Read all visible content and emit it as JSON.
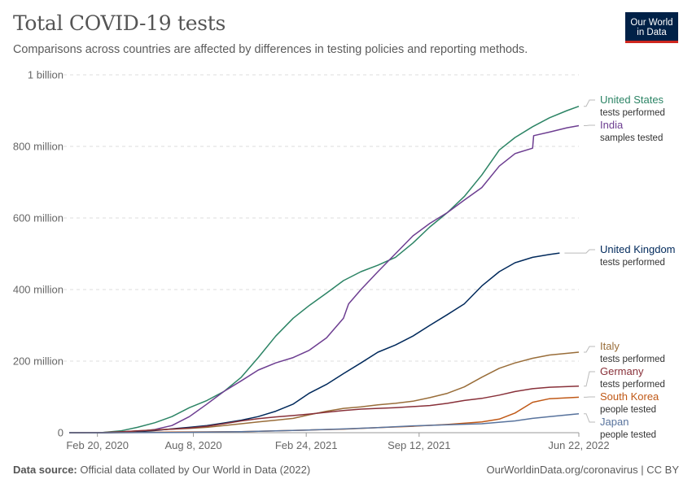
{
  "header": {
    "title": "Total COVID-19 tests",
    "subtitle": "Comparisons across countries are affected by differences in testing policies and reporting methods.",
    "logo_line1": "Our World",
    "logo_line2": "in Data"
  },
  "footer": {
    "source_label": "Data source:",
    "source_text": "Official data collated by Our World in Data (2022)",
    "credit": "OurWorldinData.org/coronavirus | CC BY"
  },
  "colors": {
    "united_states": "#2c8465",
    "india": "#6d3e91",
    "united_kingdom": "#00295b",
    "italy": "#996d39",
    "germany": "#883039",
    "south_korea": "#c05917",
    "japan": "#58739d"
  },
  "chart_data": {
    "type": "line",
    "title": "Total COVID-19 tests",
    "xlabel": "",
    "ylabel": "",
    "x_unit": "date",
    "xlim": [
      "2020-01-01",
      "2022-06-22"
    ],
    "ylim": [
      0,
      1000000000
    ],
    "grid": true,
    "legend": "right (end labels)",
    "x_ticks": [
      {
        "date": "2020-02-20",
        "label": "Feb 20, 2020"
      },
      {
        "date": "2020-08-08",
        "label": "Aug 8, 2020"
      },
      {
        "date": "2021-02-24",
        "label": "Feb 24, 2021"
      },
      {
        "date": "2021-09-12",
        "label": "Sep 12, 2021"
      },
      {
        "date": "2022-06-22",
        "label": "Jun 22, 2022"
      }
    ],
    "y_ticks": [
      {
        "value": 0,
        "label": "0"
      },
      {
        "value": 200000000,
        "label": "200 million"
      },
      {
        "value": 400000000,
        "label": "400 million"
      },
      {
        "value": 600000000,
        "label": "600 million"
      },
      {
        "value": 800000000,
        "label": "800 million"
      },
      {
        "value": 1000000000,
        "label": "1 billion"
      }
    ],
    "series": [
      {
        "key": "united_states",
        "name": "United States",
        "sublabel": "tests performed",
        "color": "#2c8465",
        "points": [
          [
            "2020-01-01",
            0
          ],
          [
            "2020-03-01",
            1000000
          ],
          [
            "2020-04-01",
            5000000
          ],
          [
            "2020-05-01",
            15000000
          ],
          [
            "2020-06-01",
            28000000
          ],
          [
            "2020-07-01",
            45000000
          ],
          [
            "2020-08-01",
            70000000
          ],
          [
            "2020-09-01",
            90000000
          ],
          [
            "2020-10-01",
            115000000
          ],
          [
            "2020-11-01",
            155000000
          ],
          [
            "2020-12-01",
            210000000
          ],
          [
            "2021-01-01",
            270000000
          ],
          [
            "2021-02-01",
            320000000
          ],
          [
            "2021-03-01",
            355000000
          ],
          [
            "2021-04-01",
            390000000
          ],
          [
            "2021-05-01",
            425000000
          ],
          [
            "2021-06-01",
            450000000
          ],
          [
            "2021-07-01",
            468000000
          ],
          [
            "2021-08-01",
            490000000
          ],
          [
            "2021-09-01",
            530000000
          ],
          [
            "2021-10-01",
            575000000
          ],
          [
            "2021-11-01",
            615000000
          ],
          [
            "2021-12-01",
            660000000
          ],
          [
            "2022-01-01",
            720000000
          ],
          [
            "2022-02-01",
            790000000
          ],
          [
            "2022-03-01",
            825000000
          ],
          [
            "2022-04-01",
            855000000
          ],
          [
            "2022-05-01",
            880000000
          ],
          [
            "2022-06-01",
            900000000
          ],
          [
            "2022-06-22",
            912000000
          ]
        ]
      },
      {
        "key": "india",
        "name": "India",
        "sublabel": "samples tested",
        "color": "#6d3e91",
        "points": [
          [
            "2020-01-01",
            0
          ],
          [
            "2020-03-01",
            0
          ],
          [
            "2020-04-01",
            1000000
          ],
          [
            "2020-05-01",
            3500000
          ],
          [
            "2020-06-01",
            9000000
          ],
          [
            "2020-07-01",
            20000000
          ],
          [
            "2020-08-01",
            45000000
          ],
          [
            "2020-09-01",
            80000000
          ],
          [
            "2020-10-01",
            115000000
          ],
          [
            "2020-11-01",
            145000000
          ],
          [
            "2020-12-01",
            175000000
          ],
          [
            "2021-01-01",
            195000000
          ],
          [
            "2021-02-01",
            210000000
          ],
          [
            "2021-03-01",
            230000000
          ],
          [
            "2021-04-01",
            265000000
          ],
          [
            "2021-05-01",
            320000000
          ],
          [
            "2021-05-10",
            360000000
          ],
          [
            "2021-06-01",
            400000000
          ],
          [
            "2021-07-01",
            450000000
          ],
          [
            "2021-08-01",
            500000000
          ],
          [
            "2021-09-01",
            550000000
          ],
          [
            "2021-10-01",
            585000000
          ],
          [
            "2021-11-01",
            615000000
          ],
          [
            "2021-12-01",
            650000000
          ],
          [
            "2022-01-01",
            685000000
          ],
          [
            "2022-02-01",
            745000000
          ],
          [
            "2022-03-01",
            780000000
          ],
          [
            "2022-04-01",
            795000000
          ],
          [
            "2022-04-03",
            830000000
          ],
          [
            "2022-05-01",
            840000000
          ],
          [
            "2022-06-01",
            852000000
          ],
          [
            "2022-06-22",
            858000000
          ]
        ]
      },
      {
        "key": "united_kingdom",
        "name": "United Kingdom",
        "sublabel": "tests performed",
        "color": "#00295b",
        "points": [
          [
            "2020-01-01",
            0
          ],
          [
            "2020-03-01",
            100000
          ],
          [
            "2020-04-01",
            500000
          ],
          [
            "2020-05-01",
            2500000
          ],
          [
            "2020-06-01",
            6000000
          ],
          [
            "2020-07-01",
            11000000
          ],
          [
            "2020-08-01",
            15000000
          ],
          [
            "2020-09-01",
            20000000
          ],
          [
            "2020-10-01",
            27000000
          ],
          [
            "2020-11-01",
            35000000
          ],
          [
            "2020-12-01",
            45000000
          ],
          [
            "2021-01-01",
            60000000
          ],
          [
            "2021-02-01",
            80000000
          ],
          [
            "2021-03-01",
            110000000
          ],
          [
            "2021-04-01",
            135000000
          ],
          [
            "2021-05-01",
            165000000
          ],
          [
            "2021-06-01",
            195000000
          ],
          [
            "2021-07-01",
            225000000
          ],
          [
            "2021-08-01",
            245000000
          ],
          [
            "2021-09-01",
            270000000
          ],
          [
            "2021-10-01",
            300000000
          ],
          [
            "2021-11-01",
            330000000
          ],
          [
            "2021-12-01",
            360000000
          ],
          [
            "2022-01-01",
            410000000
          ],
          [
            "2022-02-01",
            450000000
          ],
          [
            "2022-03-01",
            475000000
          ],
          [
            "2022-04-01",
            490000000
          ],
          [
            "2022-05-01",
            498000000
          ],
          [
            "2022-05-19",
            502000000
          ]
        ]
      },
      {
        "key": "italy",
        "name": "Italy",
        "sublabel": "tests performed",
        "color": "#996d39",
        "points": [
          [
            "2020-01-01",
            0
          ],
          [
            "2020-03-01",
            500000
          ],
          [
            "2020-04-01",
            2000000
          ],
          [
            "2020-05-01",
            5000000
          ],
          [
            "2020-06-01",
            8000000
          ],
          [
            "2020-07-01",
            10000000
          ],
          [
            "2020-08-01",
            12000000
          ],
          [
            "2020-09-01",
            15000000
          ],
          [
            "2020-10-01",
            20000000
          ],
          [
            "2020-11-01",
            25000000
          ],
          [
            "2020-12-01",
            30000000
          ],
          [
            "2021-01-01",
            35000000
          ],
          [
            "2021-02-01",
            40000000
          ],
          [
            "2021-03-01",
            50000000
          ],
          [
            "2021-04-01",
            60000000
          ],
          [
            "2021-05-01",
            68000000
          ],
          [
            "2021-06-01",
            72000000
          ],
          [
            "2021-07-01",
            78000000
          ],
          [
            "2021-08-01",
            82000000
          ],
          [
            "2021-09-01",
            88000000
          ],
          [
            "2021-10-01",
            98000000
          ],
          [
            "2021-11-01",
            110000000
          ],
          [
            "2021-12-01",
            128000000
          ],
          [
            "2022-01-01",
            155000000
          ],
          [
            "2022-02-01",
            180000000
          ],
          [
            "2022-03-01",
            195000000
          ],
          [
            "2022-04-01",
            208000000
          ],
          [
            "2022-05-01",
            217000000
          ],
          [
            "2022-06-22",
            225000000
          ]
        ]
      },
      {
        "key": "germany",
        "name": "Germany",
        "sublabel": "tests performed",
        "color": "#883039",
        "points": [
          [
            "2020-01-01",
            0
          ],
          [
            "2020-03-01",
            500000
          ],
          [
            "2020-04-01",
            2500000
          ],
          [
            "2020-05-01",
            5000000
          ],
          [
            "2020-06-01",
            7500000
          ],
          [
            "2020-07-01",
            10000000
          ],
          [
            "2020-08-01",
            13000000
          ],
          [
            "2020-09-01",
            18000000
          ],
          [
            "2020-10-01",
            25000000
          ],
          [
            "2020-11-01",
            33000000
          ],
          [
            "2020-12-01",
            39000000
          ],
          [
            "2021-01-01",
            44000000
          ],
          [
            "2021-02-01",
            48000000
          ],
          [
            "2021-03-01",
            52000000
          ],
          [
            "2021-04-01",
            57000000
          ],
          [
            "2021-05-01",
            62000000
          ],
          [
            "2021-06-01",
            66000000
          ],
          [
            "2021-07-01",
            68000000
          ],
          [
            "2021-08-01",
            70000000
          ],
          [
            "2021-09-01",
            73000000
          ],
          [
            "2021-10-01",
            76000000
          ],
          [
            "2021-11-01",
            82000000
          ],
          [
            "2021-12-01",
            90000000
          ],
          [
            "2022-01-01",
            96000000
          ],
          [
            "2022-02-01",
            105000000
          ],
          [
            "2022-03-01",
            115000000
          ],
          [
            "2022-04-01",
            123000000
          ],
          [
            "2022-05-01",
            127000000
          ],
          [
            "2022-06-22",
            130000000
          ]
        ]
      },
      {
        "key": "south_korea",
        "name": "South Korea",
        "sublabel": "people tested",
        "color": "#c05917",
        "points": [
          [
            "2020-01-01",
            0
          ],
          [
            "2020-03-01",
            100000
          ],
          [
            "2020-05-01",
            700000
          ],
          [
            "2020-07-01",
            1500000
          ],
          [
            "2020-09-01",
            2300000
          ],
          [
            "2020-11-01",
            3000000
          ],
          [
            "2021-01-01",
            5000000
          ],
          [
            "2021-03-01",
            7500000
          ],
          [
            "2021-05-01",
            10000000
          ],
          [
            "2021-07-01",
            14000000
          ],
          [
            "2021-09-01",
            18000000
          ],
          [
            "2021-11-01",
            23000000
          ],
          [
            "2022-01-01",
            30000000
          ],
          [
            "2022-02-01",
            38000000
          ],
          [
            "2022-03-01",
            55000000
          ],
          [
            "2022-04-01",
            85000000
          ],
          [
            "2022-05-01",
            95000000
          ],
          [
            "2022-06-22",
            99000000
          ]
        ]
      },
      {
        "key": "japan",
        "name": "Japan",
        "sublabel": "people tested",
        "color": "#58739d",
        "points": [
          [
            "2020-01-01",
            0
          ],
          [
            "2020-03-01",
            20000
          ],
          [
            "2020-05-01",
            200000
          ],
          [
            "2020-07-01",
            600000
          ],
          [
            "2020-09-01",
            1500000
          ],
          [
            "2020-11-01",
            2800000
          ],
          [
            "2021-01-01",
            5000000
          ],
          [
            "2021-03-01",
            7500000
          ],
          [
            "2021-05-01",
            10500000
          ],
          [
            "2021-07-01",
            14000000
          ],
          [
            "2021-09-01",
            19000000
          ],
          [
            "2021-11-01",
            22000000
          ],
          [
            "2022-01-01",
            25000000
          ],
          [
            "2022-03-01",
            33000000
          ],
          [
            "2022-04-01",
            40000000
          ],
          [
            "2022-05-01",
            45000000
          ],
          [
            "2022-06-22",
            53000000
          ]
        ]
      }
    ]
  }
}
